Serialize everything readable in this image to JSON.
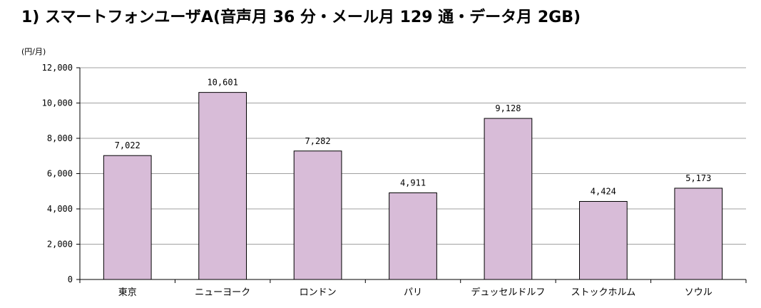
{
  "chart_data": {
    "type": "bar",
    "title": "1) スマートフォンユーザA(音声月 36 分・メール月 129 通・データ月 2GB)",
    "ylabel": "(円/月)",
    "xlabel": "",
    "categories": [
      "東京",
      "ニューヨーク",
      "ロンドン",
      "パリ",
      "デュッセルドルフ",
      "ストックホルム",
      "ソウル"
    ],
    "values": [
      7022,
      10601,
      7282,
      4911,
      9128,
      4424,
      5173
    ],
    "value_labels": [
      "7,022",
      "10,601",
      "7,282",
      "4,911",
      "9,128",
      "4,424",
      "5,173"
    ],
    "ylim": [
      0,
      12000
    ],
    "yticks": [
      0,
      2000,
      4000,
      6000,
      8000,
      10000,
      12000
    ],
    "ytick_labels": [
      "0",
      "2,000",
      "4,000",
      "6,000",
      "8,000",
      "10,000",
      "12,000"
    ],
    "grid": true,
    "bar_color": "#d8bcd8",
    "bar_edge_color": "#000000",
    "grid_color": "#a0a0a0"
  }
}
